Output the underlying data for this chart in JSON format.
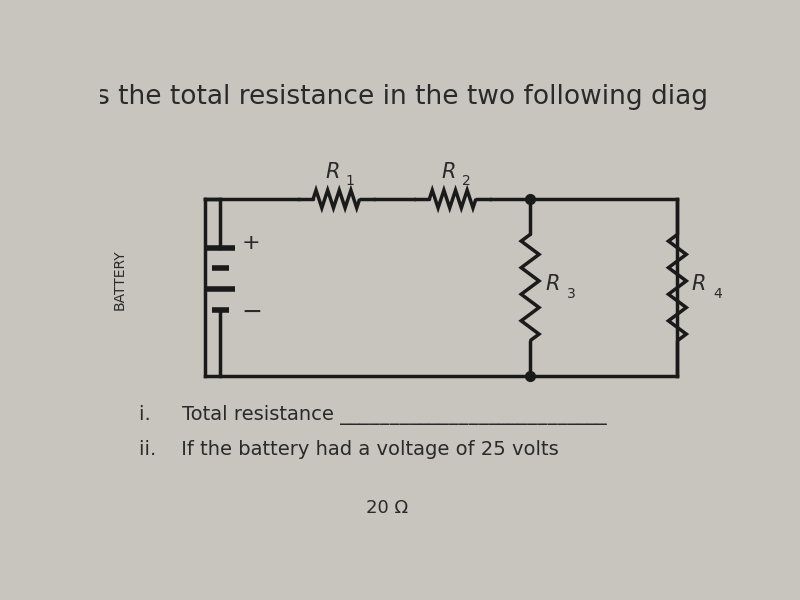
{
  "bg_color": "#c8c4be",
  "title_text": "s the total resistance in the two following diag",
  "title_fontsize": 19,
  "title_color": "#2a2a2a",
  "battery_label": "BATTERY",
  "r1_label": "R",
  "r1_sub": "1",
  "r2_label": "R",
  "r2_sub": "2",
  "r3_label": "R",
  "r3_sub": "3",
  "r4_label": "R",
  "r4_sub": "4",
  "item_i": "i.     Total resistance ___________________________",
  "item_ii": "ii.    If the battery had a voltage of 25 volts",
  "omega_label": "20 Ω",
  "line_color": "#1a1a1a",
  "line_width": 2.5,
  "font_color": "#2a2a2a"
}
